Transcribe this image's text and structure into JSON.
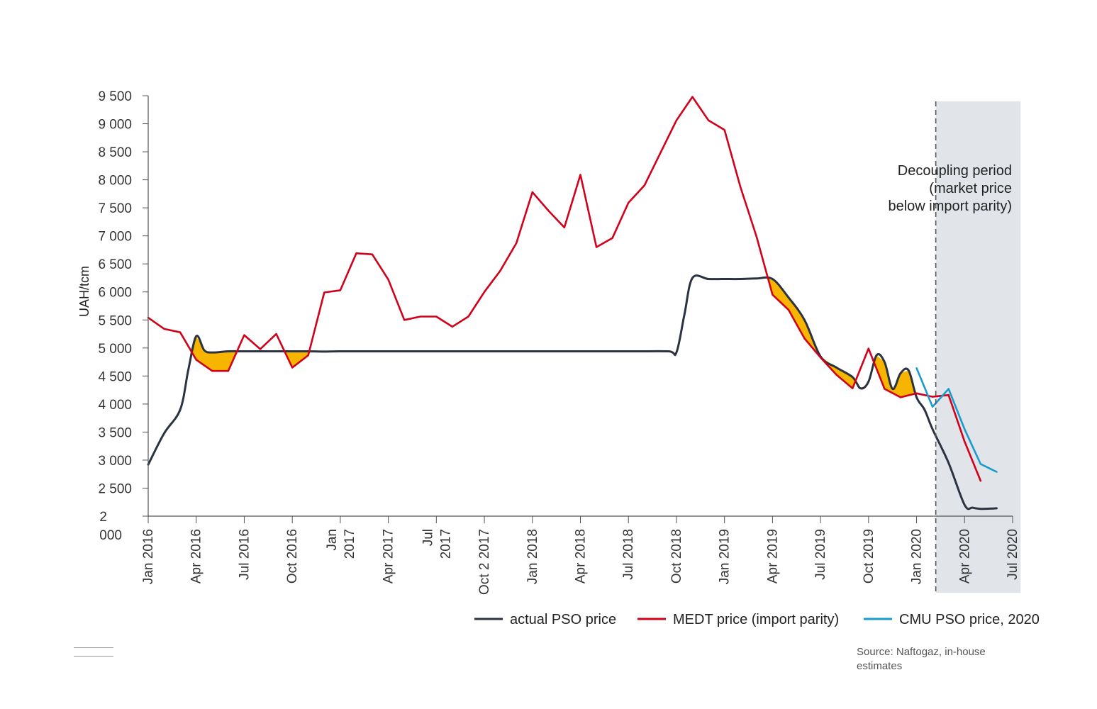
{
  "chart_data": {
    "type": "line",
    "ylabel": "UAH/tcm",
    "ylim": [
      2000,
      9500
    ],
    "yticks": [
      2000,
      2500,
      3000,
      3500,
      4000,
      4500,
      5000,
      5500,
      6000,
      6500,
      7000,
      7500,
      8000,
      8500,
      9000,
      9500
    ],
    "ytick_labels": [
      "2\n000",
      "2 500",
      "3 000",
      "3 500",
      "4 000",
      "4 500",
      "5 000",
      "5 500",
      "6 000",
      "6 500",
      "7 000",
      "7 500",
      "8 000",
      "8 500",
      "9 000",
      "9 500"
    ],
    "xlim": [
      0,
      54
    ],
    "xticks": [
      {
        "x": 0,
        "label": "Jan 2016"
      },
      {
        "x": 3,
        "label": "Apr 2016"
      },
      {
        "x": 6,
        "label": "Jul 2016"
      },
      {
        "x": 9,
        "label": "Oct 2016"
      },
      {
        "x": 12,
        "label": "Jan\n2017"
      },
      {
        "x": 15,
        "label": "Apr 2017"
      },
      {
        "x": 18,
        "label": "Jul\n2017"
      },
      {
        "x": 21,
        "label": "Oct 2 2017"
      },
      {
        "x": 24,
        "label": "Jan 2018"
      },
      {
        "x": 27,
        "label": "Apr 2018"
      },
      {
        "x": 30,
        "label": "Jul 2018"
      },
      {
        "x": 33,
        "label": "Oct 2018"
      },
      {
        "x": 36,
        "label": "Jan 2019"
      },
      {
        "x": 39,
        "label": "Apr 2019"
      },
      {
        "x": 42,
        "label": "Jul 2019"
      },
      {
        "x": 45,
        "label": "Oct 2019"
      },
      {
        "x": 48,
        "label": "Jan 2020"
      },
      {
        "x": 51,
        "label": "Apr 2020"
      },
      {
        "x": 54,
        "label": "Jul 2020"
      }
    ],
    "series": [
      {
        "name": "actual PSO price",
        "color": "#2b3240",
        "x": [
          0,
          1,
          2,
          2.5,
          3,
          3.5,
          4,
          5,
          6,
          7,
          8,
          9,
          10,
          11,
          12,
          15,
          20,
          25,
          30,
          32.5,
          33,
          33.5,
          34,
          35,
          36,
          37,
          38,
          39,
          40,
          41,
          42,
          43,
          44,
          44.5,
          45,
          45.5,
          46,
          46.5,
          47,
          47.5,
          48,
          48.5,
          49,
          50,
          51,
          51.5,
          52,
          53
        ],
        "values": [
          2920,
          3480,
          3900,
          4600,
          5210,
          4960,
          4920,
          4940,
          4940,
          4940,
          4940,
          4940,
          4940,
          4935,
          4940,
          4940,
          4940,
          4940,
          4940,
          4940,
          4920,
          5600,
          6250,
          6230,
          6230,
          6230,
          6240,
          6230,
          5900,
          5500,
          4850,
          4650,
          4480,
          4280,
          4400,
          4870,
          4750,
          4270,
          4550,
          4600,
          4120,
          3900,
          3550,
          2950,
          2200,
          2150,
          2130,
          2140
        ]
      },
      {
        "name": "MEDT price (import parity)",
        "color": "#d0021b",
        "x": [
          0,
          1,
          2,
          3,
          4,
          5,
          6,
          7,
          8,
          9,
          10,
          11,
          12,
          13,
          14,
          15,
          16,
          17,
          18,
          19,
          20,
          21,
          22,
          23,
          24,
          25,
          26,
          27,
          28,
          29,
          30,
          31,
          32,
          33,
          34,
          35,
          36,
          37,
          38,
          39,
          40,
          41,
          42,
          43,
          44,
          45,
          46,
          47,
          48,
          49,
          50,
          51,
          52
        ],
        "values": [
          5540,
          5340,
          5280,
          4790,
          4590,
          4590,
          5230,
          4980,
          5250,
          4650,
          4870,
          5990,
          6030,
          6690,
          6670,
          6220,
          5500,
          5560,
          5560,
          5380,
          5560,
          6000,
          6380,
          6870,
          7780,
          7450,
          7150,
          8090,
          6800,
          6960,
          7590,
          7900,
          8480,
          9060,
          9480,
          9060,
          8890,
          7870,
          6990,
          5950,
          5680,
          5170,
          4830,
          4520,
          4280,
          4990,
          4270,
          4120,
          4190,
          4130,
          4160,
          3330,
          2630
        ]
      },
      {
        "name": "CMU PSO price, 2020",
        "color": "#1a9bcc",
        "x": [
          48,
          49,
          50,
          51,
          52,
          53
        ],
        "values": [
          4640,
          3950,
          4270,
          3550,
          2930,
          2790
        ]
      }
    ],
    "shaded_region": {
      "x_from": 49.2,
      "x_to": 54.5,
      "label": "Decoupling period (market price below import parity)"
    },
    "annotation": [
      "Decoupling period",
      "(market price",
      "below import parity)"
    ],
    "fill_color": "#f7b500",
    "source": "Source: Naftogaz, in-house estimates"
  }
}
